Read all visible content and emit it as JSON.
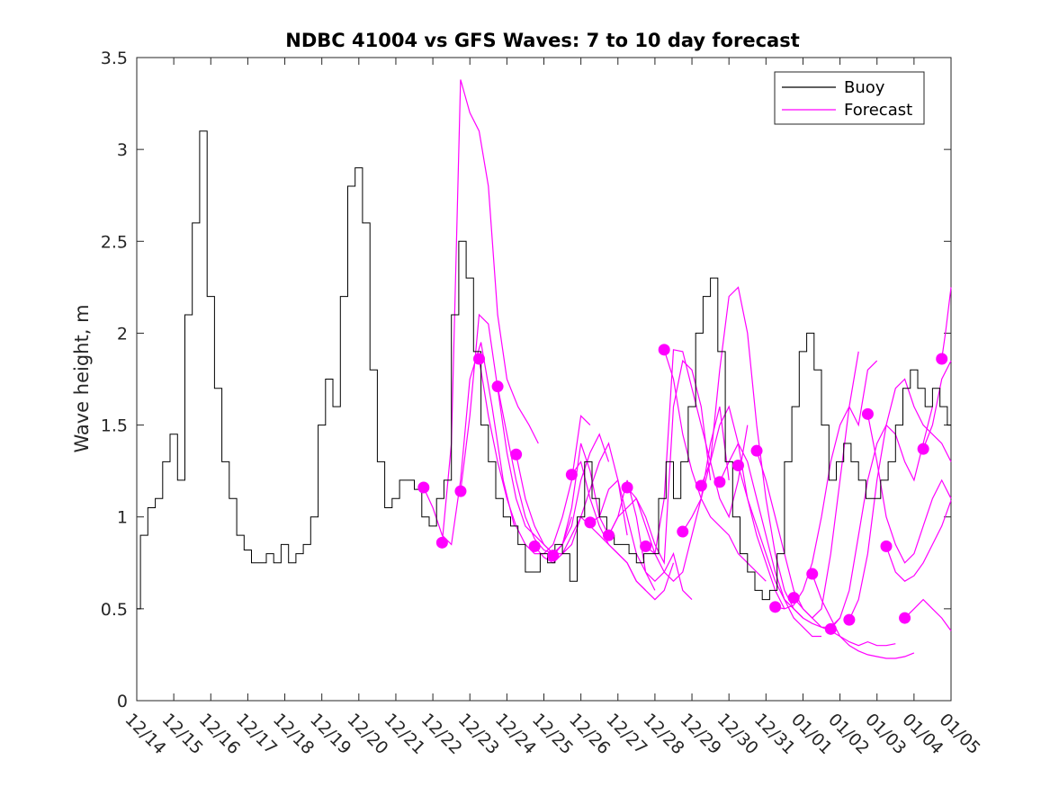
{
  "chart_data": {
    "type": "line",
    "title": "NDBC 41004 vs GFS Waves: 7 to 10 day forecast",
    "xlabel": "",
    "ylabel": "Wave height, m",
    "ylim": [
      0,
      3.5
    ],
    "yticks": [
      0,
      0.5,
      1,
      1.5,
      2,
      2.5,
      3,
      3.5
    ],
    "ytick_labels": [
      "0",
      "0.5",
      "1",
      "1.5",
      "2",
      "2.5",
      "3",
      "3.5"
    ],
    "xlim_days": [
      0,
      22
    ],
    "xtick_labels": [
      "12/14",
      "12/15",
      "12/16",
      "12/17",
      "12/18",
      "12/19",
      "12/20",
      "12/21",
      "12/22",
      "12/23",
      "12/24",
      "12/25",
      "12/26",
      "12/27",
      "12/28",
      "12/29",
      "12/30",
      "12/31",
      "01/01",
      "01/02",
      "01/03",
      "01/04",
      "01/05"
    ],
    "legend": {
      "position": "top-right",
      "entries": [
        {
          "label": "Buoy",
          "color": "#000000"
        },
        {
          "label": "Forecast",
          "color": "#ff00ff"
        }
      ]
    },
    "colors": {
      "buoy": "#000000",
      "forecast": "#ff00ff"
    },
    "buoy": {
      "name": "Buoy",
      "x": [
        0,
        0.1,
        0.3,
        0.5,
        0.7,
        0.9,
        1.1,
        1.3,
        1.5,
        1.7,
        1.9,
        2.1,
        2.3,
        2.5,
        2.7,
        2.9,
        3.1,
        3.3,
        3.5,
        3.7,
        3.9,
        4.1,
        4.3,
        4.5,
        4.7,
        4.9,
        5.1,
        5.3,
        5.5,
        5.7,
        5.9,
        6.1,
        6.3,
        6.5,
        6.7,
        6.9,
        7.1,
        7.3,
        7.5,
        7.7,
        7.9,
        8.1,
        8.3,
        8.5,
        8.7,
        8.9,
        9.1,
        9.3,
        9.5,
        9.7,
        9.9,
        10.1,
        10.3,
        10.5,
        10.7,
        10.9,
        11.1,
        11.3,
        11.5,
        11.7,
        11.9,
        12.1,
        12.3,
        12.5,
        12.7,
        12.9,
        13.1,
        13.3,
        13.5,
        13.7,
        13.9,
        14.1,
        14.3,
        14.5,
        14.7,
        14.9,
        15.1,
        15.3,
        15.5,
        15.7,
        15.9,
        16.1,
        16.3,
        16.5,
        16.7,
        16.9,
        17.1,
        17.3,
        17.5,
        17.7,
        17.9,
        18.1,
        18.3,
        18.5,
        18.7,
        18.9,
        19.1,
        19.3,
        19.5,
        19.7,
        19.9,
        20.1,
        20.3,
        20.5,
        20.7,
        20.9,
        21.1,
        21.3,
        21.5,
        21.7,
        21.9,
        22.0
      ],
      "y": [
        0.5,
        0.9,
        1.05,
        1.1,
        1.3,
        1.45,
        1.2,
        2.1,
        2.6,
        3.1,
        2.2,
        1.7,
        1.3,
        1.1,
        0.9,
        0.82,
        0.75,
        0.75,
        0.8,
        0.75,
        0.85,
        0.75,
        0.8,
        0.85,
        1.0,
        1.5,
        1.75,
        1.6,
        2.2,
        2.8,
        2.9,
        2.6,
        1.8,
        1.3,
        1.05,
        1.1,
        1.2,
        1.2,
        1.15,
        1.0,
        0.95,
        1.1,
        1.2,
        2.1,
        2.5,
        2.3,
        1.9,
        1.5,
        1.3,
        1.1,
        1.0,
        0.95,
        0.85,
        0.7,
        0.7,
        0.8,
        0.75,
        0.85,
        0.8,
        0.65,
        1.0,
        1.3,
        1.1,
        1.0,
        0.9,
        0.85,
        0.85,
        0.8,
        0.75,
        0.8,
        0.8,
        1.1,
        1.3,
        1.1,
        1.3,
        1.6,
        2.0,
        2.2,
        2.3,
        1.9,
        1.3,
        1.0,
        0.8,
        0.7,
        0.6,
        0.55,
        0.6,
        0.8,
        1.3,
        1.6,
        1.9,
        2.0,
        1.8,
        1.5,
        1.2,
        1.3,
        1.4,
        1.3,
        1.2,
        1.1,
        1.1,
        1.2,
        1.3,
        1.5,
        1.7,
        1.8,
        1.7,
        1.6,
        1.7,
        1.6,
        1.5,
        1.5
      ]
    },
    "forecasts": [
      {
        "x": [
          7.75,
          8.0,
          8.25,
          8.5,
          8.75,
          9.0,
          9.3,
          9.6,
          9.9,
          10.2
        ],
        "y": [
          1.16,
          1.05,
          0.9,
          0.85,
          1.2,
          1.75,
          1.95,
          1.6,
          1.2,
          0.95
        ]
      },
      {
        "x": [
          8.25,
          8.5,
          8.75,
          9.0,
          9.25,
          9.5,
          9.75,
          10.0,
          10.3,
          10.6,
          10.85
        ],
        "y": [
          0.86,
          1.4,
          3.38,
          3.2,
          3.1,
          2.8,
          2.1,
          1.75,
          1.6,
          1.5,
          1.4
        ]
      },
      {
        "x": [
          8.75,
          9.0,
          9.25,
          9.5,
          9.75,
          10.0,
          10.25,
          10.5,
          10.75,
          11.0,
          11.25,
          11.5,
          11.75
        ],
        "y": [
          1.14,
          1.55,
          2.1,
          2.05,
          1.7,
          1.35,
          1.1,
          0.95,
          0.9,
          0.85,
          0.8,
          0.85,
          1.0
        ]
      },
      {
        "x": [
          9.25,
          9.5,
          9.75,
          10.0,
          10.25,
          10.5,
          10.75,
          11.0,
          11.25,
          11.5,
          11.75,
          12.0,
          12.25
        ],
        "y": [
          1.86,
          1.55,
          1.3,
          1.1,
          0.95,
          0.85,
          0.8,
          0.8,
          0.85,
          1.0,
          1.2,
          1.55,
          1.5
        ]
      },
      {
        "x": [
          9.75,
          10.0,
          10.25,
          10.5,
          10.75,
          11.0,
          11.25,
          11.5,
          11.75,
          12.0,
          12.25,
          12.5,
          12.75
        ],
        "y": [
          1.71,
          1.45,
          1.2,
          1.0,
          0.88,
          0.82,
          0.8,
          0.85,
          0.95,
          1.2,
          1.35,
          1.45,
          1.3
        ]
      },
      {
        "x": [
          10.25,
          10.5,
          10.75,
          11.0,
          11.25,
          11.5,
          11.75,
          12.0,
          12.25,
          12.5,
          12.75,
          13.0,
          13.25
        ],
        "y": [
          1.34,
          1.1,
          0.95,
          0.85,
          0.8,
          0.8,
          0.85,
          1.0,
          1.15,
          1.3,
          1.4,
          1.2,
          0.9
        ]
      },
      {
        "x": [
          10.75,
          11.0,
          11.25,
          11.5,
          11.75,
          12.0,
          12.25,
          12.5,
          12.75,
          13.0,
          13.25,
          13.5,
          13.75
        ],
        "y": [
          0.84,
          0.78,
          0.75,
          0.8,
          0.9,
          1.0,
          0.95,
          0.9,
          0.85,
          0.8,
          0.75,
          0.65,
          0.6
        ]
      },
      {
        "x": [
          11.25,
          11.5,
          11.75,
          12.0,
          12.25,
          12.5,
          12.75,
          13.0,
          13.25,
          13.5,
          13.75,
          14.0
        ],
        "y": [
          0.79,
          0.85,
          1.05,
          1.4,
          1.25,
          1.0,
          0.9,
          1.0,
          1.2,
          1.0,
          0.7,
          0.6
        ]
      },
      {
        "x": [
          11.75,
          12.0,
          12.25,
          12.5,
          12.75,
          13.0,
          13.25,
          13.5,
          13.75,
          14.0,
          14.25,
          14.5
        ],
        "y": [
          1.23,
          1.3,
          1.1,
          0.95,
          0.85,
          0.8,
          0.75,
          0.65,
          0.6,
          0.55,
          0.6,
          0.75
        ]
      },
      {
        "x": [
          12.25,
          12.5,
          12.75,
          13.0,
          13.25,
          13.5,
          13.75,
          14.0,
          14.25,
          14.5,
          14.75,
          15.0
        ],
        "y": [
          0.97,
          1.0,
          1.15,
          1.2,
          1.0,
          0.8,
          0.7,
          0.65,
          0.7,
          0.8,
          0.6,
          0.55
        ]
      },
      {
        "x": [
          12.75,
          13.0,
          13.25,
          13.5,
          13.75,
          14.0,
          14.25,
          14.5,
          14.75,
          15.0,
          15.25,
          15.5
        ],
        "y": [
          0.9,
          1.0,
          1.05,
          1.1,
          1.0,
          0.85,
          0.75,
          1.6,
          1.85,
          1.8,
          1.6,
          1.2
        ]
      },
      {
        "x": [
          13.25,
          13.5,
          13.75,
          14.0,
          14.25,
          14.5,
          14.75,
          15.0,
          15.25,
          15.5,
          15.75,
          16.0
        ],
        "y": [
          1.16,
          1.1,
          0.95,
          0.8,
          0.7,
          0.65,
          0.7,
          0.9,
          1.1,
          1.4,
          1.6,
          1.2
        ]
      },
      {
        "x": [
          13.75,
          14.0,
          14.25,
          14.5,
          14.75,
          15.0,
          15.25,
          15.5,
          15.75,
          16.0,
          16.25,
          16.5
        ],
        "y": [
          0.84,
          0.8,
          1.1,
          1.91,
          1.9,
          1.7,
          1.5,
          1.3,
          1.1,
          1.0,
          1.2,
          1.5
        ]
      },
      {
        "x": [
          14.25,
          14.5,
          14.75,
          15.0,
          15.25,
          15.5,
          15.75,
          16.0,
          16.25,
          16.5,
          16.75,
          17.0
        ],
        "y": [
          1.91,
          1.75,
          1.45,
          1.25,
          1.1,
          1.0,
          0.95,
          0.9,
          0.8,
          0.75,
          0.7,
          0.65
        ]
      },
      {
        "x": [
          14.75,
          15.0,
          15.25,
          15.5,
          15.75,
          16.0,
          16.25,
          16.5,
          16.75,
          17.0,
          17.25,
          17.5
        ],
        "y": [
          0.92,
          1.0,
          1.1,
          1.3,
          1.5,
          1.6,
          1.4,
          1.1,
          0.9,
          0.75,
          0.6,
          0.5
        ]
      },
      {
        "x": [
          15.25,
          15.5,
          15.75,
          16.0,
          16.25,
          16.5,
          16.75,
          17.0,
          17.25,
          17.5,
          17.75,
          18.0
        ],
        "y": [
          1.17,
          1.3,
          1.8,
          2.2,
          2.25,
          2.0,
          1.5,
          1.1,
          0.8,
          0.6,
          0.5,
          0.45
        ]
      },
      {
        "x": [
          15.75,
          16.0,
          16.25,
          16.5,
          16.75,
          17.0,
          17.25,
          17.5,
          17.75,
          18.0,
          18.25,
          18.5
        ],
        "y": [
          1.19,
          1.3,
          1.4,
          1.3,
          1.1,
          0.9,
          0.7,
          0.55,
          0.45,
          0.4,
          0.35,
          0.35
        ]
      },
      {
        "x": [
          16.25,
          16.5,
          16.75,
          17.0,
          17.25,
          17.5,
          17.75,
          18.0,
          18.25,
          18.5,
          18.75,
          19.0
        ],
        "y": [
          1.28,
          1.1,
          0.95,
          0.8,
          0.65,
          0.55,
          0.5,
          0.45,
          0.42,
          0.4,
          0.4,
          0.45
        ]
      },
      {
        "x": [
          16.75,
          17.0,
          17.25,
          17.5,
          17.75,
          18.0,
          18.25,
          18.5,
          18.75,
          19.0,
          19.25,
          19.5
        ],
        "y": [
          1.36,
          1.2,
          1.0,
          0.8,
          0.6,
          0.5,
          0.45,
          0.5,
          0.8,
          1.2,
          1.6,
          1.9
        ]
      },
      {
        "x": [
          17.25,
          17.5,
          17.75,
          18.0,
          18.25,
          18.5,
          18.75,
          19.0,
          19.25,
          19.5,
          19.75,
          20.0
        ],
        "y": [
          0.51,
          0.5,
          0.52,
          0.6,
          0.75,
          1.0,
          1.3,
          1.5,
          1.6,
          1.5,
          1.8,
          1.85
        ]
      },
      {
        "x": [
          17.75,
          18.0,
          18.25,
          18.5,
          18.75,
          19.0,
          19.25,
          19.5,
          19.75,
          20.0,
          20.25,
          20.5
        ],
        "y": [
          0.56,
          0.5,
          0.45,
          0.4,
          0.38,
          0.35,
          0.32,
          0.3,
          0.32,
          0.3,
          0.3,
          0.31
        ]
      },
      {
        "x": [
          18.25,
          18.5,
          18.75,
          19.0,
          19.25,
          19.5,
          19.75,
          20.0,
          20.25,
          20.5,
          20.75,
          21.0
        ],
        "y": [
          0.69,
          0.55,
          0.45,
          0.35,
          0.3,
          0.27,
          0.25,
          0.24,
          0.23,
          0.23,
          0.24,
          0.26
        ]
      },
      {
        "x": [
          18.75,
          19.0,
          19.25,
          19.5,
          19.75,
          20.0,
          20.25,
          20.5,
          20.75,
          21.0,
          21.25,
          21.5
        ],
        "y": [
          0.39,
          0.45,
          0.6,
          0.9,
          1.2,
          1.4,
          1.5,
          1.45,
          1.3,
          1.2,
          1.4,
          1.6
        ]
      },
      {
        "x": [
          19.25,
          19.5,
          19.75,
          20.0,
          20.25,
          20.5,
          20.75,
          21.0,
          21.25,
          21.5,
          21.75,
          22.0
        ],
        "y": [
          0.44,
          0.55,
          0.8,
          1.2,
          1.5,
          1.7,
          1.75,
          1.6,
          1.5,
          1.45,
          1.4,
          1.3
        ]
      },
      {
        "x": [
          19.75,
          20.0,
          20.25,
          20.5,
          20.75,
          21.0,
          21.25,
          21.5,
          21.75,
          22.0
        ],
        "y": [
          1.56,
          1.3,
          1.0,
          0.85,
          0.75,
          0.8,
          0.95,
          1.1,
          1.2,
          1.1
        ]
      },
      {
        "x": [
          20.25,
          20.5,
          20.75,
          21.0,
          21.25,
          21.5,
          21.75,
          22.0
        ],
        "y": [
          0.84,
          0.7,
          0.65,
          0.68,
          0.75,
          0.85,
          0.95,
          1.09
        ]
      },
      {
        "x": [
          20.75,
          21.0,
          21.25,
          21.5,
          21.75,
          22.0
        ],
        "y": [
          0.45,
          0.5,
          0.55,
          0.5,
          0.45,
          0.38
        ]
      },
      {
        "x": [
          21.25,
          21.5,
          21.75,
          22.0
        ],
        "y": [
          1.37,
          1.5,
          1.75,
          1.85
        ]
      },
      {
        "x": [
          21.75,
          21.85,
          22.0
        ],
        "y": [
          1.86,
          2.0,
          2.25
        ]
      }
    ],
    "markers": {
      "x": [
        7.75,
        8.25,
        8.75,
        9.25,
        9.75,
        10.25,
        10.75,
        11.25,
        11.75,
        12.25,
        12.75,
        13.25,
        13.75,
        14.25,
        14.75,
        15.25,
        15.75,
        16.25,
        16.75,
        17.25,
        17.75,
        18.25,
        18.75,
        19.25,
        19.75,
        20.25,
        20.75,
        21.25,
        21.75
      ],
      "y": [
        1.16,
        0.86,
        1.14,
        1.86,
        1.71,
        1.34,
        0.84,
        0.79,
        1.23,
        0.97,
        0.9,
        1.16,
        0.84,
        1.91,
        0.92,
        1.17,
        1.19,
        1.28,
        1.36,
        0.51,
        0.56,
        0.69,
        0.39,
        0.44,
        1.56,
        0.84,
        0.45,
        1.37,
        1.86
      ]
    }
  }
}
